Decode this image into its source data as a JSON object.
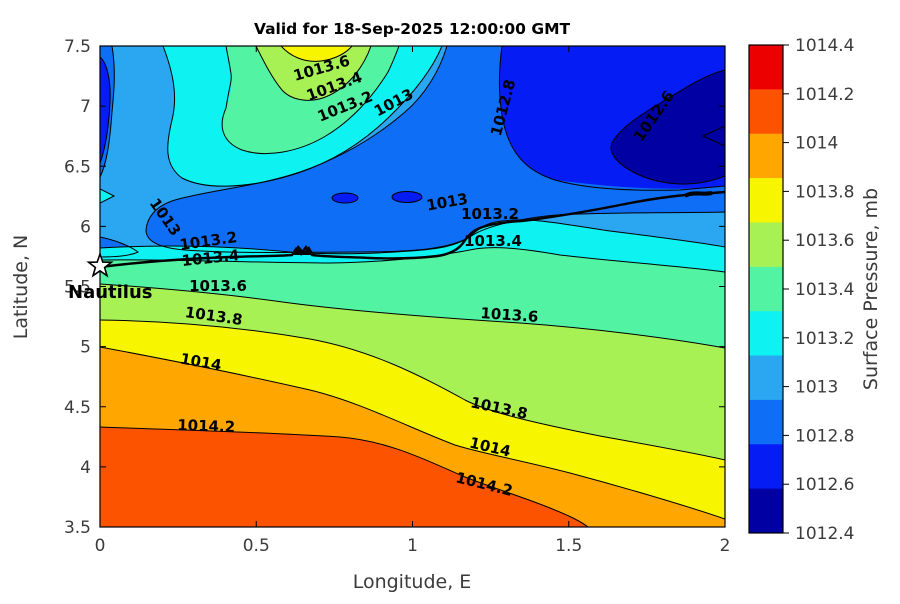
{
  "figure": {
    "title": "Valid for 18-Sep-2025 12:00:00 GMT",
    "x_axis": {
      "label": "Longitude, E",
      "ticks": [
        "0",
        "0.5",
        "1",
        "1.5",
        "2"
      ]
    },
    "y_axis": {
      "label": "Latitude, N",
      "ticks": [
        "7.5",
        "7",
        "6.5",
        "6",
        "5.5",
        "5",
        "4.5",
        "4",
        "3.5"
      ]
    },
    "colorbar": {
      "label": "Surface Pressure, mb",
      "ticks": [
        "1014.4",
        "1014.2",
        "1014",
        "1013.8",
        "1013.6",
        "1013.4",
        "1013.2",
        "1013",
        "1012.8",
        "1012.6",
        "1012.4"
      ],
      "colors": [
        "#ec0000",
        "#fb5300",
        "#ffa700",
        "#f7f500",
        "#a8f155",
        "#52f3a2",
        "#0ef2f2",
        "#2ba6f0",
        "#0e6ef5",
        "#051cf5",
        "#0000a3"
      ]
    },
    "station": {
      "name": "Nautilus",
      "marker": "star-icon"
    }
  },
  "chart_data": {
    "type": "heatmap",
    "subtype": "filled-contour-map",
    "title": "Valid for 18-Sep-2025 12:00:00 GMT",
    "xlabel": "Longitude, E",
    "ylabel": "Latitude, N",
    "xlim": [
      0,
      2
    ],
    "ylim": [
      3.5,
      7.5
    ],
    "colorbar_label": "Surface Pressure, mb",
    "levels_mb": [
      1012.4,
      1012.6,
      1012.8,
      1013,
      1013.2,
      1013.4,
      1013.6,
      1013.8,
      1014,
      1014.2,
      1014.4
    ],
    "field_summary": "Surface pressure ~1014.3 mb at the southwest corner decreasing to ~1012.5 mb in a closed low northeast of the coastline; high-pressure ridge tongue (>1013.8 mb) at top-center near lon 0.7, lat 7.5",
    "station": {
      "name": "Nautilus",
      "lon": 0,
      "lat": 5.72
    },
    "contour_labels": [
      {
        "value": "1013.6",
        "x": 323,
        "y": 73,
        "rot": -16
      },
      {
        "value": "1013.4",
        "x": 336,
        "y": 91,
        "rot": -20
      },
      {
        "value": "1013.2",
        "x": 347,
        "y": 111,
        "rot": -22
      },
      {
        "value": "1013",
        "x": 396,
        "y": 107,
        "rot": -28
      },
      {
        "value": "1012.8",
        "x": 508,
        "y": 109,
        "rot": -75
      },
      {
        "value": "1012.6",
        "x": 658,
        "y": 119,
        "rot": -55
      },
      {
        "value": "1013",
        "x": 161,
        "y": 220,
        "rot": 55
      },
      {
        "value": "1013.2",
        "x": 209,
        "y": 246,
        "rot": -8
      },
      {
        "value": "1013.4",
        "x": 211,
        "y": 263,
        "rot": -6
      },
      {
        "value": "1013.6",
        "x": 218,
        "y": 291,
        "rot": 0
      },
      {
        "value": "1013",
        "x": 448,
        "y": 207,
        "rot": -10
      },
      {
        "value": "1013.2",
        "x": 490,
        "y": 219,
        "rot": 0
      },
      {
        "value": "1013.4",
        "x": 493,
        "y": 246,
        "rot": 0
      },
      {
        "value": "1013.6",
        "x": 509,
        "y": 320,
        "rot": 4
      },
      {
        "value": "1013.8",
        "x": 498,
        "y": 413,
        "rot": 12
      },
      {
        "value": "1014",
        "x": 489,
        "y": 452,
        "rot": 13
      },
      {
        "value": "1014.2",
        "x": 483,
        "y": 489,
        "rot": 14
      },
      {
        "value": "1013.8",
        "x": 213,
        "y": 321,
        "rot": 8
      },
      {
        "value": "1014",
        "x": 200,
        "y": 367,
        "rot": 10
      },
      {
        "value": "1014.2",
        "x": 206,
        "y": 431,
        "rot": 2
      }
    ]
  }
}
